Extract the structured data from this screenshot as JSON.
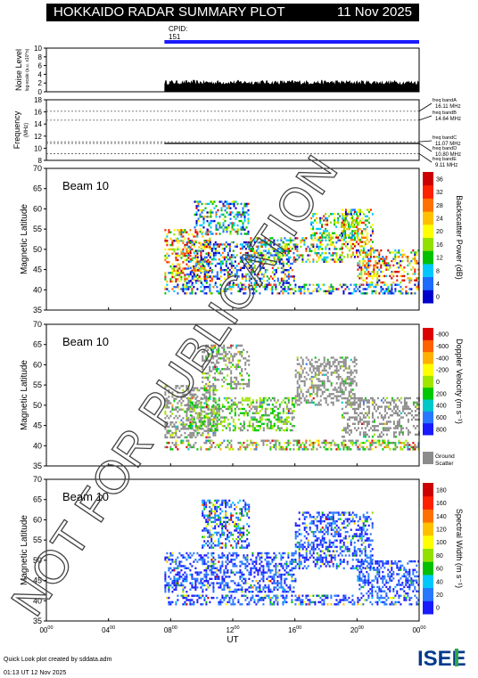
{
  "header": {
    "title": "HOKKAIDO RADAR SUMMARY PLOT",
    "date": "11 Nov 2025",
    "cpid_label": "CPID:",
    "cpid_value": "151"
  },
  "watermark": "NOT FOR PUBLICATION",
  "footer": {
    "line1": "Quick Look plot created by sddata.adm",
    "line2": "01:13 UT 12 Nov 2025",
    "logo": "ISEE"
  },
  "colors": {
    "cpid_bar": "#1a1aff",
    "ground_scatter": "#8c8c8c"
  },
  "chart_data": [
    {
      "id": "noise",
      "type": "area",
      "ylabel": "Noise Level",
      "ylabel2": "log-scale (a.u. x10^n)",
      "ylim": [
        0,
        10
      ],
      "yticks": [
        0,
        2,
        4,
        6,
        8,
        10
      ],
      "x": [
        7.6,
        24.0
      ],
      "typical_level": 2.2
    },
    {
      "id": "frequency",
      "type": "line",
      "ylabel": "Frequency",
      "ylabel2": "(MHz)",
      "ylim": [
        8,
        18
      ],
      "yticks": [
        8,
        10,
        12,
        14,
        16,
        18
      ],
      "bands": [
        {
          "label": "freq bandA",
          "value_label": "16.11 MHz",
          "value": 16.11
        },
        {
          "label": "freq bandB",
          "value_label": "14.64 MHz",
          "value": 14.64
        },
        {
          "label": "freq bandC",
          "value_label": "11.07 MHz",
          "value": 11.07
        },
        {
          "label": "freq bandD",
          "value_label": "10.80 MHz",
          "value": 10.8
        },
        {
          "label": "freq bandE",
          "value_label": "9.11 MHz",
          "value": 9.11
        }
      ],
      "operating": [
        {
          "x": [
            7.6,
            24.0
          ],
          "y": 10.8
        }
      ]
    },
    {
      "id": "power",
      "type": "heatmap",
      "beam_label": "Beam 10",
      "ylabel": "Magnetic Latitude",
      "ylim": [
        35,
        70
      ],
      "yticks": [
        35,
        40,
        45,
        50,
        55,
        60,
        65,
        70
      ],
      "colorbar": {
        "title": "Backscatter Power (dB)",
        "ticks": [
          "0",
          "4",
          "8",
          "12",
          "16",
          "20",
          "24",
          "28",
          "32",
          "36"
        ],
        "colors": [
          "#0000cc",
          "#1e6bff",
          "#00c8ff",
          "#00c000",
          "#90e000",
          "#ffff00",
          "#ffc000",
          "#ff7000",
          "#ff2000",
          "#cc0000"
        ]
      },
      "regions": [
        {
          "x": [
            7.6,
            24
          ],
          "y": [
            39,
            41.5
          ],
          "mix": [
            0.45,
            0.25,
            0.15,
            0.15
          ]
        },
        {
          "x": [
            7.6,
            10.5
          ],
          "y": [
            42,
            55
          ],
          "mix": [
            0.05,
            0.15,
            0.3,
            0.5
          ]
        },
        {
          "x": [
            9,
            16
          ],
          "y": [
            41.5,
            52
          ],
          "mix": [
            0.5,
            0.2,
            0.15,
            0.15
          ]
        },
        {
          "x": [
            13,
            19
          ],
          "y": [
            47,
            53
          ],
          "mix": [
            0.2,
            0.3,
            0.3,
            0.2
          ]
        },
        {
          "x": [
            17,
            20
          ],
          "y": [
            53,
            59
          ],
          "mix": [
            0.05,
            0.6,
            0.25,
            0.1
          ]
        },
        {
          "x": [
            19,
            21
          ],
          "y": [
            48,
            60
          ],
          "mix": [
            0.1,
            0.2,
            0.4,
            0.3
          ]
        },
        {
          "x": [
            20,
            24
          ],
          "y": [
            42,
            50
          ],
          "mix": [
            0.1,
            0.15,
            0.3,
            0.45
          ]
        },
        {
          "x": [
            9.5,
            13
          ],
          "y": [
            54,
            62
          ],
          "mix": [
            0.3,
            0.5,
            0.1,
            0.1
          ]
        }
      ]
    },
    {
      "id": "velocity",
      "type": "heatmap",
      "beam_label": "Beam 10",
      "ylabel": "Magnetic Latitude",
      "ylim": [
        35,
        70
      ],
      "yticks": [
        35,
        40,
        45,
        50,
        55,
        60,
        65,
        70
      ],
      "colorbar": {
        "title": "Doppler Velocity (m s⁻¹)",
        "ticks": [
          "800",
          "600",
          "400",
          "200",
          "0",
          "-200",
          "-400",
          "-600",
          "-800"
        ],
        "colors": [
          "#1a1aff",
          "#2878ff",
          "#00c8c8",
          "#00c800",
          "#a0e600",
          "#ffff00",
          "#ffb000",
          "#ff6000",
          "#dd0000"
        ],
        "gs_label_1": "Ground",
        "gs_label_2": "Scatter"
      },
      "regions": [
        {
          "x": [
            7.6,
            24
          ],
          "y": [
            39,
            41.5
          ],
          "mix": [
            0.3,
            0.4,
            0.05,
            0.25
          ]
        },
        {
          "x": [
            7.6,
            11
          ],
          "y": [
            42,
            55
          ],
          "mix": [
            0.8,
            0.15,
            0.03,
            0.02
          ]
        },
        {
          "x": [
            9,
            16
          ],
          "y": [
            44,
            52
          ],
          "mix": [
            0.3,
            0.65,
            0.03,
            0.02
          ]
        },
        {
          "x": [
            10,
            13
          ],
          "y": [
            54,
            65
          ],
          "mix": [
            0.7,
            0.2,
            0.05,
            0.05
          ]
        },
        {
          "x": [
            16,
            20
          ],
          "y": [
            50,
            62
          ],
          "mix": [
            0.85,
            0.1,
            0.03,
            0.02
          ]
        },
        {
          "x": [
            19,
            24
          ],
          "y": [
            42,
            52
          ],
          "mix": [
            0.9,
            0.07,
            0.02,
            0.01
          ]
        }
      ]
    },
    {
      "id": "width",
      "type": "heatmap",
      "beam_label": "Beam 10",
      "ylabel": "Magnetic Latitude",
      "ylim": [
        35,
        70
      ],
      "yticks": [
        35,
        40,
        45,
        50,
        55,
        60,
        65,
        70
      ],
      "xlabel": "UT",
      "xticks": [
        "00",
        "04",
        "08",
        "12",
        "16",
        "20",
        "00"
      ],
      "xlim": [
        0,
        24
      ],
      "colorbar": {
        "title": "Spectral Width (m s⁻¹)",
        "ticks": [
          "0",
          "20",
          "40",
          "60",
          "80",
          "100",
          "120",
          "140",
          "160",
          "180"
        ],
        "colors": [
          "#1a1aff",
          "#2878ff",
          "#00c8ff",
          "#00c000",
          "#90e000",
          "#ffff00",
          "#ffc000",
          "#ff7000",
          "#ff2000",
          "#cc0000"
        ]
      },
      "regions": [
        {
          "x": [
            7.6,
            24
          ],
          "y": [
            39,
            41.5
          ],
          "mix": [
            0.8,
            0.1,
            0.05,
            0.05
          ]
        },
        {
          "x": [
            7.6,
            16
          ],
          "y": [
            42,
            52
          ],
          "mix": [
            0.9,
            0.06,
            0.02,
            0.02
          ]
        },
        {
          "x": [
            10,
            13
          ],
          "y": [
            53,
            65
          ],
          "mix": [
            0.6,
            0.2,
            0.1,
            0.1
          ]
        },
        {
          "x": [
            16,
            21
          ],
          "y": [
            48,
            62
          ],
          "mix": [
            0.85,
            0.1,
            0.03,
            0.02
          ]
        },
        {
          "x": [
            20,
            24
          ],
          "y": [
            42,
            50
          ],
          "mix": [
            0.95,
            0.04,
            0.01,
            0.0
          ]
        }
      ]
    }
  ]
}
